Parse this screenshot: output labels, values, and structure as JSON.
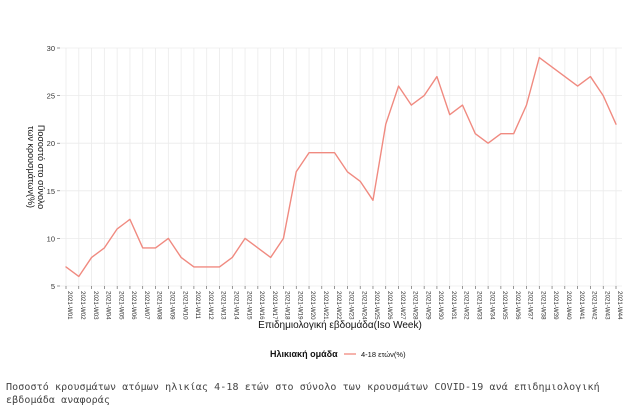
{
  "chart_data": {
    "type": "line",
    "title": "",
    "xlabel": "Επιδημιολογική εβδομάδα(Iso Week)",
    "ylabel_lines": [
      "Ποσοστό στο σύνολο",
      "των κρουσμάτων(%)"
    ],
    "ylim": [
      5,
      30
    ],
    "yticks": [
      5,
      10,
      15,
      20,
      25,
      30
    ],
    "grid": true,
    "legend_position": "bottom",
    "legend_title": "Ηλικιακή ομάδα",
    "categories": [
      "2021-W01",
      "2021-W02",
      "2021-W03",
      "2021-W04",
      "2021-W05",
      "2021-W06",
      "2021-W07",
      "2021-W08",
      "2021-W09",
      "2021-W10",
      "2021-W11",
      "2021-W12",
      "2021-W13",
      "2021-W14",
      "2021-W15",
      "2021-W16",
      "2021-W17",
      "2021-W18",
      "2021-W19",
      "2021-W20",
      "2021-W21",
      "2021-W22",
      "2021-W23",
      "2021-W24",
      "2021-W25",
      "2021-W26",
      "2021-W27",
      "2021-W28",
      "2021-W29",
      "2021-W30",
      "2021-W31",
      "2021-W32",
      "2021-W33",
      "2021-W34",
      "2021-W35",
      "2021-W36",
      "2021-W37",
      "2021-W38",
      "2021-W39",
      "2021-W40",
      "2021-W41",
      "2021-W42",
      "2021-W43",
      "2021-W44"
    ],
    "series": [
      {
        "name": "4-18 ετών(%)",
        "color": "#f08a80",
        "values": [
          7,
          6,
          8,
          9,
          11,
          12,
          9,
          9,
          10,
          8,
          7,
          7,
          7,
          8,
          10,
          9,
          8,
          10,
          17,
          19,
          19,
          19,
          17,
          16,
          14,
          22,
          26,
          24,
          25,
          27,
          23,
          24,
          21,
          20,
          21,
          21,
          24,
          29,
          28,
          27,
          26,
          27,
          25,
          22
        ]
      }
    ]
  },
  "caption": "Ποσοστό κρουσμάτων ατόμων ηλικίας 4-18 ετών στο σύνολο των κρουσμάτων COVID-19 ανά επιδημιολογική εβδομάδα αναφοράς"
}
